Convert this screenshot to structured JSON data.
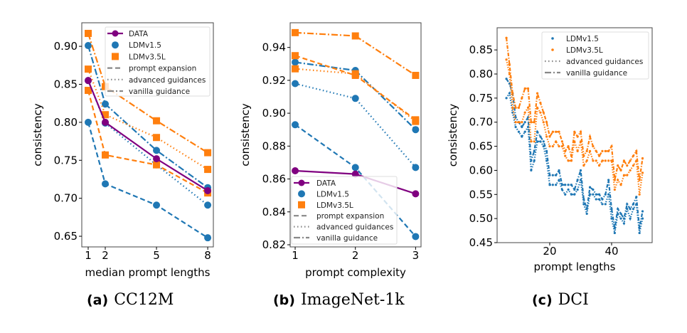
{
  "colors": {
    "DATA": "#800080",
    "LDMv1.5": "#1f77b4",
    "LDMv3.5L": "#ff7f0e"
  },
  "captions": [
    {
      "label": "(a)",
      "text": "CC12M"
    },
    {
      "label": "(b)",
      "text": "ImageNet-1k"
    },
    {
      "label": "(c)",
      "text": "DCI"
    }
  ],
  "chart_data": [
    {
      "type": "line",
      "xlabel": "median prompt lengths",
      "ylabel": "consistency",
      "x": [
        1,
        2,
        5,
        8
      ],
      "xticks": [
        1,
        2,
        5,
        8
      ],
      "yticks": [
        0.65,
        0.7,
        0.75,
        0.8,
        0.85,
        0.9
      ],
      "xlim": [
        0.625,
        8.33
      ],
      "ylim": [
        0.636,
        0.931
      ],
      "legend_position": "top-right",
      "legend": [
        "DATA",
        "LDMv1.5",
        "LDMv3.5L",
        "prompt expansion",
        "advanced guidances",
        "vanilla guidance"
      ],
      "series": [
        {
          "model": "LDMv1.5",
          "method": "prompt expansion",
          "values": [
            0.8,
            0.719,
            0.691,
            0.648
          ]
        },
        {
          "model": "LDMv1.5",
          "method": "advanced guidances",
          "values": [
            0.855,
            0.799,
            0.744,
            0.691
          ]
        },
        {
          "model": "LDMv1.5",
          "method": "vanilla guidance",
          "values": [
            0.901,
            0.824,
            0.763,
            0.714
          ]
        },
        {
          "model": "LDMv3.5L",
          "method": "prompt expansion",
          "values": [
            0.842,
            0.757,
            0.744,
            0.707
          ]
        },
        {
          "model": "LDMv3.5L",
          "method": "advanced guidances",
          "values": [
            0.87,
            0.81,
            0.78,
            0.738
          ]
        },
        {
          "model": "LDMv3.5L",
          "method": "vanilla guidance",
          "values": [
            0.917,
            0.847,
            0.802,
            0.76
          ]
        },
        {
          "model": "DATA",
          "method": "",
          "values": [
            0.855,
            0.8,
            0.752,
            0.71
          ]
        }
      ]
    },
    {
      "type": "line",
      "xlabel": "prompt complexity",
      "ylabel": "consistency",
      "x": [
        1,
        2,
        3
      ],
      "xticks": [
        1,
        2,
        3
      ],
      "yticks": [
        0.82,
        0.84,
        0.86,
        0.88,
        0.9,
        0.92,
        0.94
      ],
      "xlim": [
        0.917,
        3.09
      ],
      "ylim": [
        0.8187,
        0.955
      ],
      "legend_position": "bottom-left",
      "legend": [
        "DATA",
        "LDMv1.5",
        "LDMv3.5L",
        "prompt expansion",
        "advanced guidances",
        "vanilla guidance"
      ],
      "series": [
        {
          "model": "LDMv1.5",
          "method": "prompt expansion",
          "values": [
            0.893,
            0.867,
            0.825
          ]
        },
        {
          "model": "LDMv1.5",
          "method": "advanced guidances",
          "values": [
            0.918,
            0.909,
            0.867
          ]
        },
        {
          "model": "LDMv1.5",
          "method": "vanilla guidance",
          "values": [
            0.931,
            0.926,
            0.89
          ]
        },
        {
          "model": "LDMv3.5L",
          "method": "prompt expansion",
          "values": [
            0.935,
            0.923,
            0.896
          ]
        },
        {
          "model": "LDMv3.5L",
          "method": "advanced guidances",
          "values": [
            0.927,
            0.924,
            0.895
          ]
        },
        {
          "model": "LDMv3.5L",
          "method": "vanilla guidance",
          "values": [
            0.949,
            0.947,
            0.923
          ]
        },
        {
          "model": "DATA",
          "method": "",
          "values": [
            0.865,
            0.863,
            0.851
          ]
        }
      ]
    },
    {
      "type": "line",
      "xlabel": "prompt lengths",
      "ylabel": "consistency",
      "x": [
        6,
        7,
        8,
        9,
        10,
        11,
        12,
        13,
        14,
        15,
        16,
        17,
        18,
        19,
        20,
        21,
        22,
        23,
        24,
        25,
        26,
        27,
        28,
        29,
        30,
        31,
        32,
        33,
        34,
        35,
        36,
        37,
        38,
        39,
        40,
        41,
        42,
        43,
        44,
        45,
        46,
        47,
        48,
        49,
        50
      ],
      "xticks": [
        20,
        40
      ],
      "yticks": [
        0.45,
        0.5,
        0.55,
        0.6,
        0.65,
        0.7,
        0.75,
        0.8,
        0.85
      ],
      "xlim": [
        3,
        53.1
      ],
      "ylim": [
        0.45,
        0.896
      ],
      "legend_position": "top-right",
      "legend": [
        "LDMv1.5",
        "LDMv3.5L",
        "advanced guidances",
        "vanilla guidance"
      ],
      "series": [
        {
          "model": "LDMv1.5",
          "method": "advanced guidances",
          "values": [
            0.75,
            0.76,
            0.72,
            0.69,
            0.68,
            0.67,
            0.68,
            0.69,
            0.6,
            0.62,
            0.66,
            0.66,
            0.65,
            0.62,
            0.57,
            0.57,
            0.57,
            0.58,
            0.56,
            0.55,
            0.56,
            0.55,
            0.55,
            0.56,
            0.58,
            0.53,
            0.51,
            0.55,
            0.55,
            0.54,
            0.54,
            0.53,
            0.53,
            0.55,
            0.5,
            0.47,
            0.51,
            0.5,
            0.49,
            0.52,
            0.5,
            0.52,
            0.53,
            0.47,
            0.5
          ]
        },
        {
          "model": "LDMv1.5",
          "method": "vanilla guidance",
          "values": [
            0.79,
            0.78,
            0.76,
            0.71,
            0.7,
            0.69,
            0.7,
            0.71,
            0.62,
            0.64,
            0.68,
            0.67,
            0.66,
            0.64,
            0.59,
            0.59,
            0.59,
            0.6,
            0.57,
            0.57,
            0.57,
            0.57,
            0.56,
            0.58,
            0.6,
            0.54,
            0.52,
            0.565,
            0.56,
            0.55,
            0.55,
            0.54,
            0.55,
            0.58,
            0.52,
            0.48,
            0.52,
            0.51,
            0.5,
            0.53,
            0.52,
            0.53,
            0.545,
            0.48,
            0.515
          ]
        },
        {
          "model": "LDMv3.5L",
          "method": "advanced guidances",
          "values": [
            0.83,
            0.8,
            0.73,
            0.7,
            0.7,
            0.7,
            0.72,
            0.73,
            0.66,
            0.66,
            0.73,
            0.72,
            0.7,
            0.67,
            0.65,
            0.65,
            0.66,
            0.65,
            0.65,
            0.63,
            0.62,
            0.62,
            0.66,
            0.64,
            0.66,
            0.61,
            0.62,
            0.64,
            0.62,
            0.62,
            0.61,
            0.62,
            0.62,
            0.62,
            0.62,
            0.56,
            0.58,
            0.57,
            0.59,
            0.59,
            0.6,
            0.61,
            0.62,
            0.55,
            0.595
          ]
        },
        {
          "model": "LDMv3.5L",
          "method": "vanilla guidance",
          "values": [
            0.875,
            0.82,
            0.76,
            0.73,
            0.73,
            0.75,
            0.77,
            0.77,
            0.7,
            0.7,
            0.76,
            0.74,
            0.72,
            0.7,
            0.67,
            0.68,
            0.68,
            0.68,
            0.66,
            0.64,
            0.65,
            0.63,
            0.68,
            0.67,
            0.68,
            0.63,
            0.64,
            0.67,
            0.65,
            0.64,
            0.63,
            0.64,
            0.64,
            0.64,
            0.65,
            0.58,
            0.61,
            0.6,
            0.62,
            0.61,
            0.62,
            0.63,
            0.64,
            0.58,
            0.625
          ]
        }
      ]
    }
  ]
}
